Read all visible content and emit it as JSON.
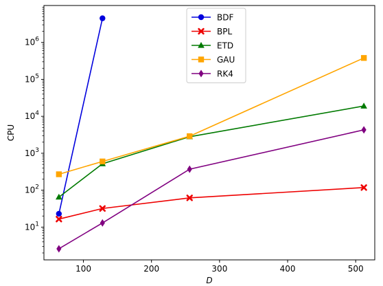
{
  "chart_data": {
    "type": "line",
    "xlabel": "D",
    "ylabel": "CPU",
    "yscale": "log",
    "xlim": [
      42,
      528
    ],
    "ylim": [
      1.3,
      10000000
    ],
    "x_ticks": [
      100,
      200,
      300,
      400,
      500
    ],
    "y_ticks": [
      10,
      100,
      1000,
      10000,
      100000,
      1000000
    ],
    "y_tick_labels": [
      {
        "base": "10",
        "exp": "1"
      },
      {
        "base": "10",
        "exp": "2"
      },
      {
        "base": "10",
        "exp": "3"
      },
      {
        "base": "10",
        "exp": "4"
      },
      {
        "base": "10",
        "exp": "5"
      },
      {
        "base": "10",
        "exp": "6"
      }
    ],
    "grid": false,
    "legend_position": "top-center",
    "series": [
      {
        "name": "BDF",
        "color": "#0000dd",
        "marker": "circle",
        "x": [
          64,
          128
        ],
        "y": [
          23,
          4500000
        ]
      },
      {
        "name": "BPL",
        "color": "#ee0000",
        "marker": "x",
        "x": [
          64,
          128,
          256,
          512
        ],
        "y": [
          16.5,
          32,
          62,
          118
        ]
      },
      {
        "name": "ETD",
        "color": "#007a00",
        "marker": "triangle",
        "x": [
          64,
          128,
          256,
          512
        ],
        "y": [
          65,
          520,
          2800,
          19000
        ]
      },
      {
        "name": "GAU",
        "color": "#ffa500",
        "marker": "square",
        "x": [
          64,
          128,
          256,
          512
        ],
        "y": [
          270,
          600,
          2900,
          380000
        ]
      },
      {
        "name": "RK4",
        "color": "#800080",
        "marker": "diamond",
        "x": [
          64,
          128,
          256,
          512
        ],
        "y": [
          2.6,
          13,
          370,
          4300
        ]
      }
    ]
  }
}
